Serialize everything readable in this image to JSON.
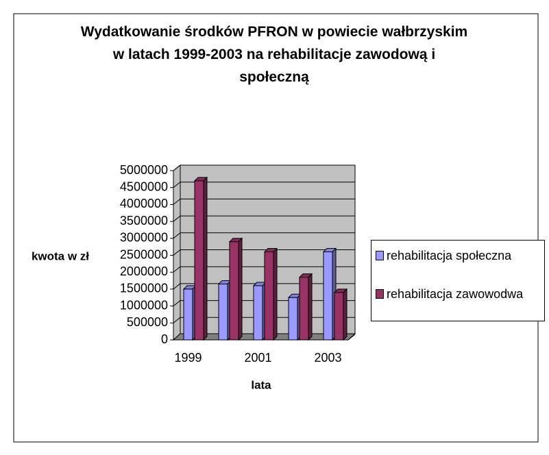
{
  "chart_data": {
    "type": "bar3d",
    "title": "Wydatkowanie środków PFRON w powiecie wałbrzyskim w latach 1999-2003 na rehabilitacje zawodową i społeczną",
    "categories": [
      "1999",
      null,
      "2001",
      null,
      "2003"
    ],
    "series": [
      {
        "name": "rehabilitacja społeczna",
        "color": "#9999ff",
        "values": [
          1500000,
          1650000,
          1600000,
          1250000,
          2600000
        ]
      },
      {
        "name": "rehabilitacja zawowodwa",
        "color": "#993366",
        "values": [
          4700000,
          2900000,
          2600000,
          1850000,
          1400000
        ]
      }
    ],
    "ylim": [
      0,
      5000000
    ],
    "yticks": [
      0,
      500000,
      1000000,
      1500000,
      2000000,
      2500000,
      3000000,
      3500000,
      4000000,
      4500000,
      5000000
    ],
    "ylabel": "kwota w zł",
    "xlabel": "lata",
    "grid": true,
    "legend": "right"
  }
}
